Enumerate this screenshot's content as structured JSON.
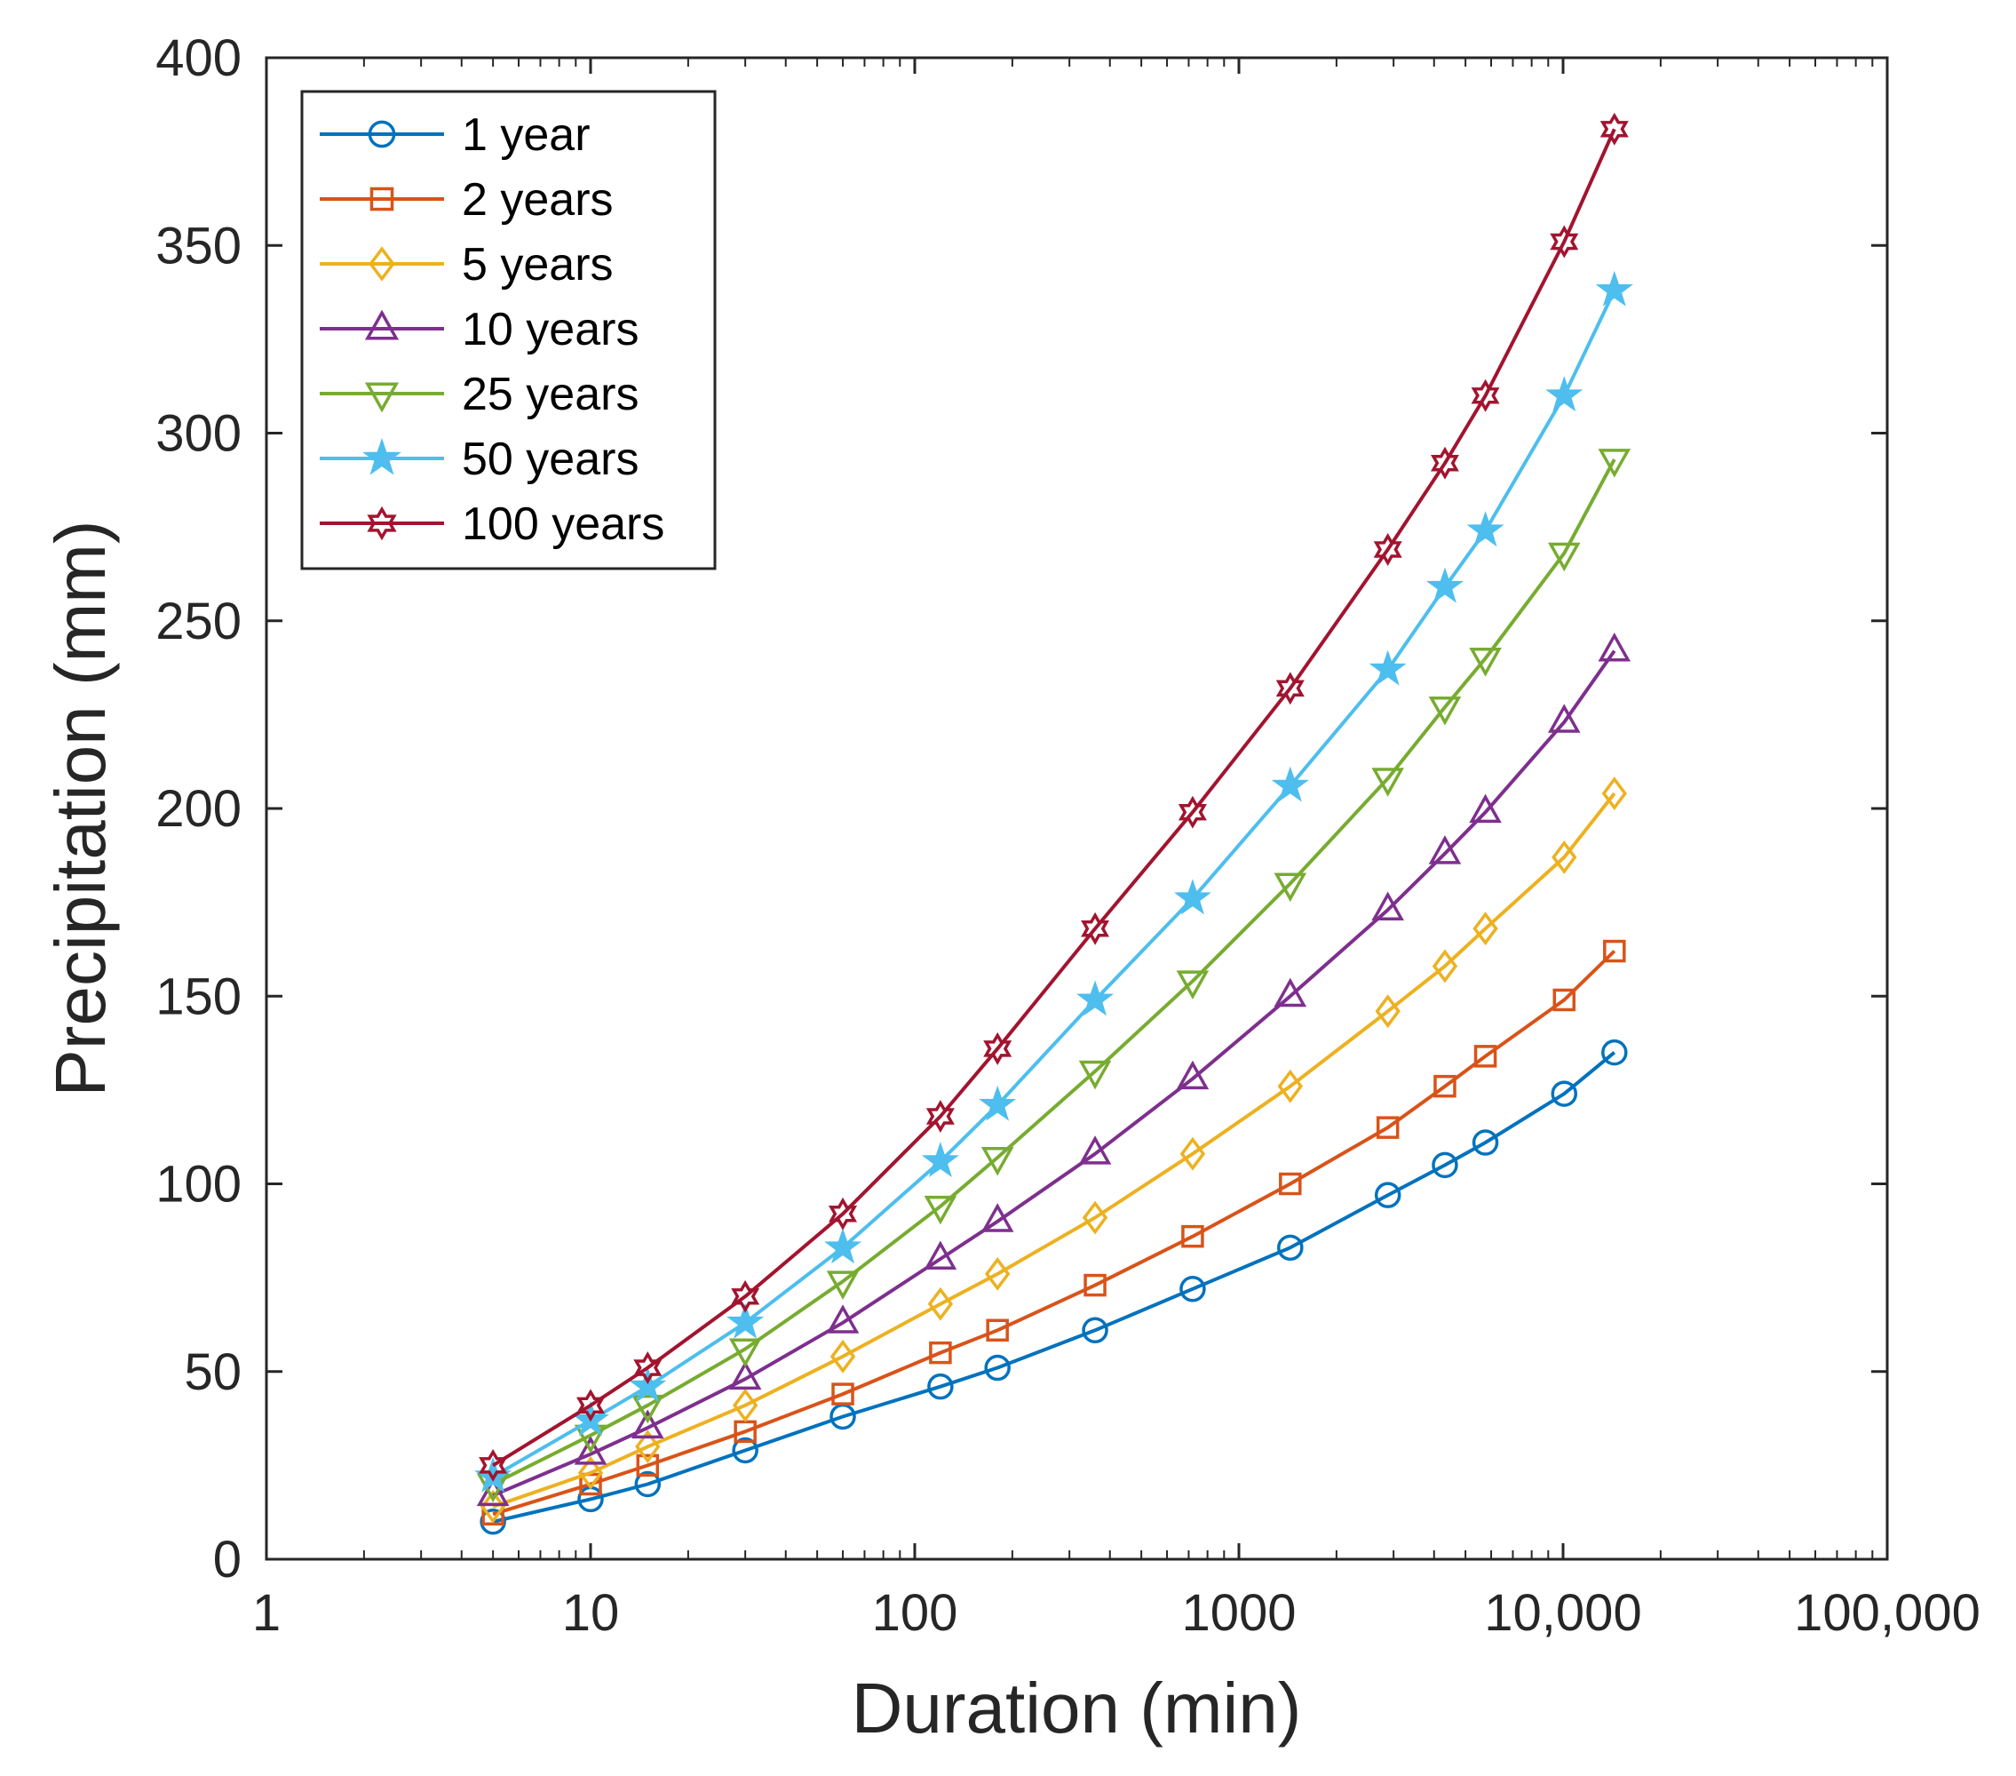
{
  "chart_data": {
    "type": "line",
    "title": "",
    "xlabel": "Duration (min)",
    "ylabel": "Precipitation (mm)",
    "xscale": "log",
    "xlim": [
      1,
      100000
    ],
    "ylim": [
      0,
      400
    ],
    "xticks": [
      1,
      10,
      100,
      1000,
      10000,
      100000
    ],
    "xtick_labels": [
      "1",
      "10",
      "100",
      "1000",
      "10,000",
      "100,000"
    ],
    "yticks": [
      0,
      50,
      100,
      150,
      200,
      250,
      300,
      350,
      400
    ],
    "ytick_labels": [
      "0",
      "50",
      "100",
      "150",
      "200",
      "250",
      "300",
      "350",
      "400"
    ],
    "grid": false,
    "legend_position": "top-left",
    "x": [
      5,
      10,
      15,
      30,
      60,
      120,
      180,
      360,
      720,
      1440,
      2880,
      4320,
      5760,
      10080,
      14400
    ],
    "series": [
      {
        "name": "1 year",
        "color": "#0072BD",
        "marker": "circle",
        "values": [
          10,
          16,
          20,
          29,
          38,
          46,
          51,
          61,
          72,
          83,
          97,
          105,
          111,
          124,
          135
        ]
      },
      {
        "name": "2 years",
        "color": "#D95319",
        "marker": "square",
        "values": [
          12,
          20,
          25,
          34,
          44,
          55,
          61,
          73,
          86,
          100,
          115,
          126,
          134,
          149,
          162
        ]
      },
      {
        "name": "5 years",
        "color": "#EDB120",
        "marker": "diamond",
        "values": [
          14,
          23,
          30,
          41,
          54,
          68,
          76,
          91,
          108,
          126,
          146,
          158,
          168,
          187,
          204
        ]
      },
      {
        "name": "10 years",
        "color": "#7E2F8E",
        "marker": "triangle-up",
        "values": [
          17,
          28,
          35,
          48,
          63,
          80,
          90,
          108,
          128,
          150,
          173,
          188,
          199,
          223,
          242
        ]
      },
      {
        "name": "25 years",
        "color": "#77AC30",
        "marker": "triangle-down",
        "values": [
          20,
          33,
          41,
          56,
          74,
          94,
          107,
          130,
          154,
          180,
          208,
          227,
          240,
          268,
          293
        ]
      },
      {
        "name": "50 years",
        "color": "#4DBEEE",
        "marker": "pentagram",
        "values": [
          22,
          37,
          46,
          63,
          83,
          106,
          121,
          149,
          176,
          206,
          237,
          259,
          274,
          310,
          338
        ]
      },
      {
        "name": "100 years",
        "color": "#A2142F",
        "marker": "hexagram",
        "values": [
          25,
          41,
          51,
          70,
          92,
          118,
          136,
          168,
          199,
          232,
          269,
          292,
          310,
          351,
          381
        ]
      }
    ]
  }
}
